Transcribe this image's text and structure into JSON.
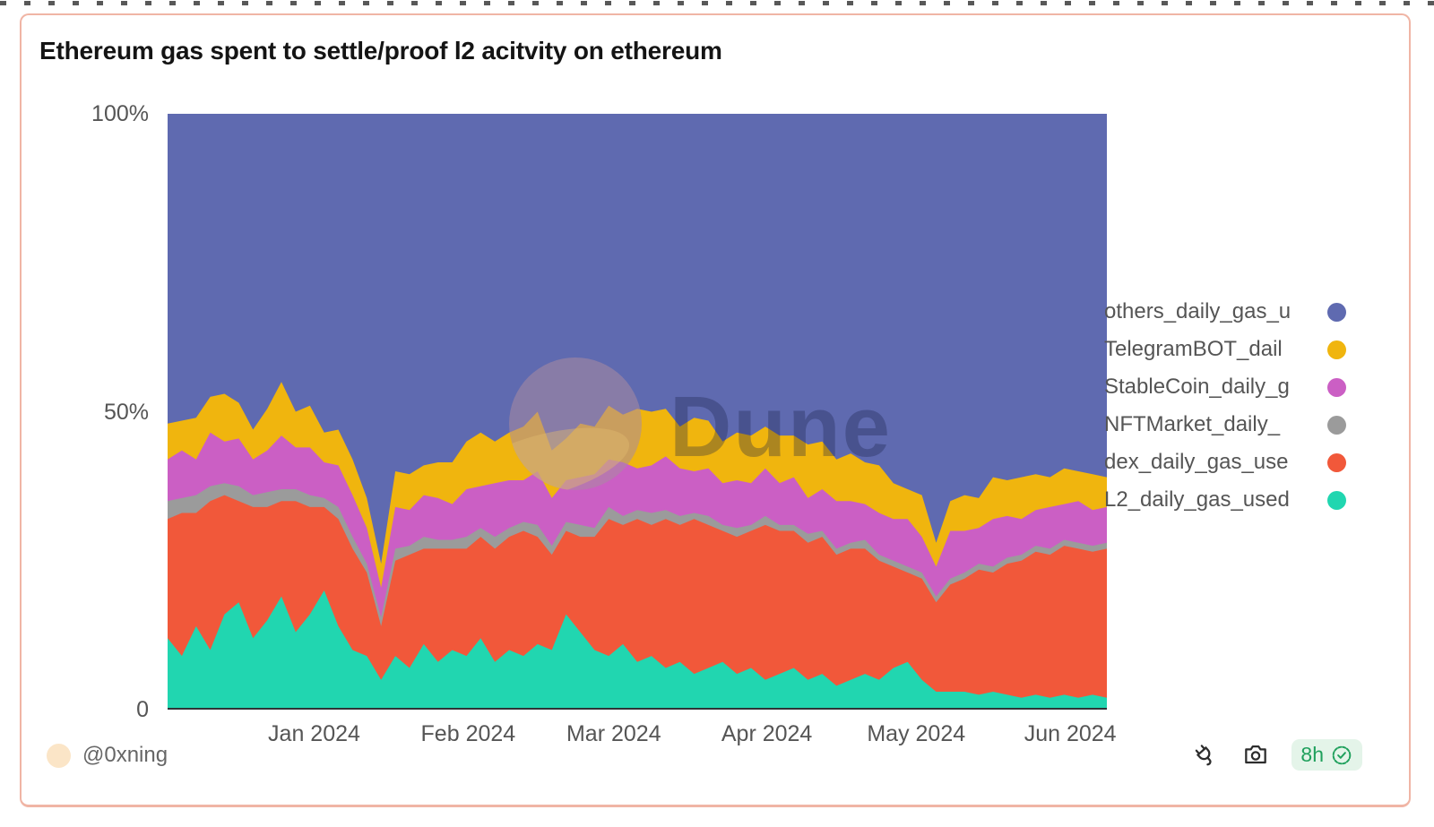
{
  "title": "Ethereum gas spent to settle/proof l2 acitvity on ethereum",
  "watermark": "Dune",
  "author": {
    "handle": "@0xning"
  },
  "footer": {
    "age": "8h",
    "icons": [
      "plug-icon",
      "camera-icon",
      "verified-badge-icon"
    ]
  },
  "colors": {
    "card_border": "#f0b5a5",
    "badge_bg": "#e4f4e9",
    "badge_green": "#1fa05c",
    "axis_text": "#555555",
    "axis_line": "#2f3337"
  },
  "chart_data": {
    "type": "area",
    "stacked": true,
    "normalized_percent": true,
    "title": "Ethereum gas spent to settle/proof l2 acitvity on ethereum",
    "x_domain": [
      "Dec 2023",
      "mid Jun 2024"
    ],
    "x_tick_labels": [
      "Jan 2024",
      "Feb 2024",
      "Mar 2024",
      "Apr 2024",
      "May 2024",
      "Jun 2024"
    ],
    "y_tick_labels": [
      "100%",
      "50%",
      "0"
    ],
    "ylim": [
      0,
      100
    ],
    "grid": false,
    "legend_position": "right",
    "legend_order_top_to_bottom": [
      "others_daily_gas_u",
      "TelegramBOT_dail",
      "StableCoin_daily_g",
      "NFTMarket_daily_",
      "dex_daily_gas_use",
      "L2_daily_gas_used"
    ],
    "sampling_note": "values in percent of total gas, ~3-day intervals Dec 2023 - mid Jun 2024, stacked bottom-to-top",
    "series": [
      {
        "name": "L2_daily_gas_used",
        "label": "L2_daily_gas_used",
        "color": "#21d6b0",
        "values": [
          12,
          9,
          14,
          10,
          16,
          18,
          12,
          15,
          19,
          13,
          16,
          20,
          14,
          10,
          9,
          5,
          9,
          7,
          11,
          8,
          10,
          9,
          12,
          8,
          10,
          9,
          11,
          10,
          16,
          13,
          10,
          9,
          11,
          8,
          9,
          7,
          8,
          6,
          7,
          8,
          6,
          7,
          5,
          6,
          7,
          5,
          6,
          4,
          5,
          6,
          5,
          7,
          8,
          5,
          3,
          3,
          3,
          2.5,
          3,
          2.5,
          2,
          2.5,
          2,
          2.5,
          2,
          2.5,
          2
        ]
      },
      {
        "name": "dex_daily_gas_use",
        "label": "dex_daily_gas_use",
        "color": "#f1583a",
        "values": [
          20,
          24,
          19,
          25,
          20,
          17,
          22,
          19,
          16,
          22,
          18,
          14,
          18,
          17,
          14,
          9,
          16,
          19,
          16,
          19,
          17,
          18,
          17,
          19,
          19,
          21,
          18,
          16,
          14,
          16,
          19,
          23,
          20,
          24,
          22,
          25,
          23,
          26,
          24,
          22,
          23,
          23,
          26,
          24,
          23,
          23,
          23,
          22,
          22,
          21,
          20,
          17,
          15,
          17,
          15,
          18,
          19,
          21,
          20,
          22,
          23,
          24,
          24,
          25,
          25,
          24,
          25
        ]
      },
      {
        "name": "NFTMarket_daily_",
        "label": "NFTMarket_daily_",
        "color": "#9b9b9b",
        "values": [
          3,
          2.5,
          3,
          2.5,
          2,
          2.5,
          2,
          2.5,
          2,
          2,
          2,
          1.5,
          2,
          2,
          1.5,
          1.5,
          2,
          1.5,
          2,
          1.5,
          1.5,
          2,
          1.5,
          2,
          1.5,
          1.5,
          2,
          1.5,
          1.5,
          2,
          1.5,
          2,
          1.5,
          1.5,
          2,
          1.5,
          1.5,
          1,
          1.5,
          1,
          1.5,
          1,
          1.5,
          1,
          1,
          1.5,
          1,
          1,
          1,
          1.5,
          1,
          1,
          1,
          1,
          1,
          1,
          1,
          1,
          1,
          1,
          1,
          1,
          1,
          1,
          1,
          1,
          1
        ]
      },
      {
        "name": "StableCoin_daily_g",
        "label": "StableCoin_daily_g",
        "color": "#cb5fc4",
        "values": [
          7,
          8,
          6,
          9,
          7,
          8,
          6,
          7,
          9,
          7,
          8,
          6,
          7,
          7,
          6,
          5,
          7,
          6,
          7,
          7,
          6,
          8,
          7,
          9,
          8,
          7,
          9,
          8,
          7,
          8,
          9,
          8,
          9,
          7,
          8,
          9,
          8,
          7,
          8,
          7,
          8,
          7,
          8,
          7,
          8,
          6,
          7,
          8,
          7,
          6,
          7,
          7,
          8,
          6,
          5,
          8,
          7,
          6,
          8,
          7,
          6,
          6,
          7,
          6,
          7,
          6,
          6
        ]
      },
      {
        "name": "TelegramBOT_dail",
        "label": "TelegramBOT_dail",
        "color": "#f0b50e",
        "values": [
          6,
          5,
          7,
          6,
          8,
          6,
          5,
          7,
          9,
          6,
          7,
          5,
          6,
          6,
          5,
          4,
          6,
          6,
          5,
          6,
          7,
          8,
          9,
          7,
          8,
          9,
          10,
          8,
          7,
          9,
          8,
          9,
          8,
          10,
          9,
          8,
          7,
          9,
          8,
          7,
          8,
          8,
          7,
          8,
          7,
          9,
          8,
          7,
          8,
          7,
          8,
          6,
          5,
          7,
          4,
          5,
          6,
          5,
          7,
          6,
          7,
          6,
          5,
          6,
          5,
          6,
          5
        ]
      },
      {
        "name": "others_daily_gas_u",
        "label": "others_daily_gas_u",
        "color": "#5f6ab0",
        "values": [
          52,
          51.5,
          51,
          47.5,
          47,
          48.5,
          53,
          49.5,
          45,
          50,
          49,
          53.5,
          53,
          58,
          64.5,
          75.5,
          60,
          60.5,
          59,
          58.5,
          58.5,
          55,
          53.5,
          55,
          53.5,
          52.5,
          50,
          56.5,
          54.5,
          52,
          52.5,
          49,
          50.5,
          49.5,
          50,
          49.5,
          52.5,
          51,
          51.5,
          55,
          53.5,
          54,
          52.5,
          54,
          54,
          55.5,
          55,
          58,
          57,
          58.5,
          59,
          62,
          63,
          64,
          72,
          65,
          64,
          64.5,
          61,
          61.5,
          61,
          60.5,
          61,
          59.5,
          60,
          60.5,
          61
        ]
      }
    ]
  }
}
